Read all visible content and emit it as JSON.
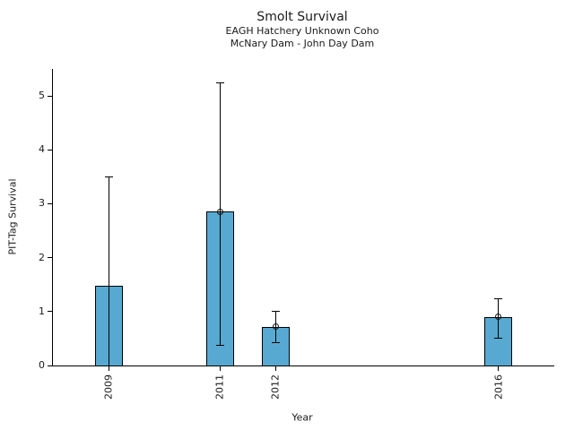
{
  "chart_data": {
    "type": "bar",
    "title": "Smolt Survival",
    "subtitles": [
      "EAGH Hatchery Unknown Coho",
      "McNary Dam - John Day Dam"
    ],
    "xlabel": "Year",
    "ylabel": "PIT-Tag Survival",
    "categories": [
      "2009",
      "2011",
      "2012",
      "2016"
    ],
    "x_numeric": [
      2009,
      2011,
      2012,
      2016
    ],
    "values": [
      1.48,
      2.85,
      0.72,
      0.9
    ],
    "error_low": [
      0.0,
      0.39,
      0.43,
      0.52
    ],
    "error_high": [
      3.5,
      5.25,
      1.01,
      1.25
    ],
    "point_markers": [
      false,
      true,
      true,
      true
    ],
    "yticks": [
      0,
      1,
      2,
      3,
      4,
      5
    ],
    "ylim": [
      0,
      5.5
    ],
    "xlim": [
      2008,
      2017
    ],
    "bar_width_years": 0.5,
    "bar_color": "#57a9d1",
    "edge_color": "#000000",
    "text_color": "#1a1a1a",
    "grid": false,
    "legend": "none"
  }
}
